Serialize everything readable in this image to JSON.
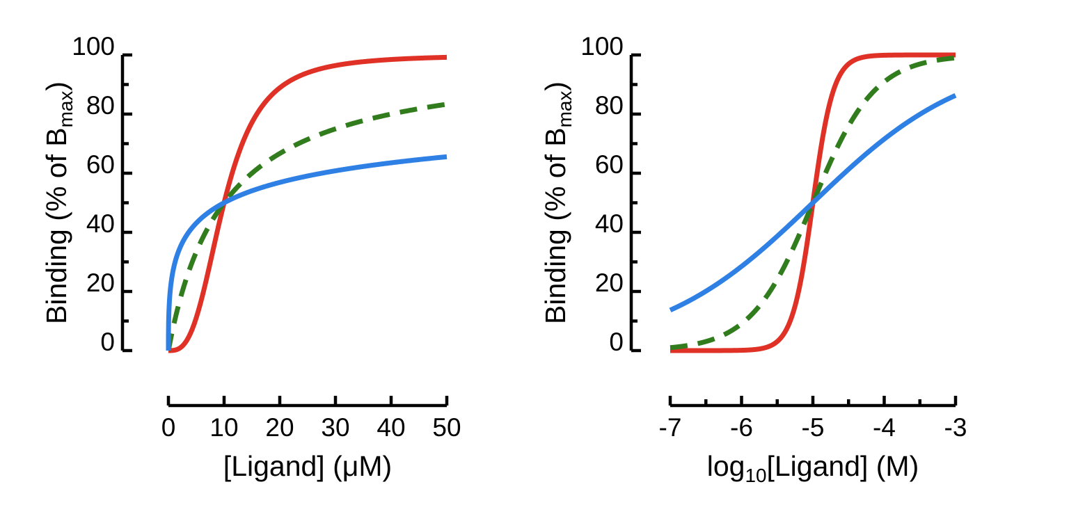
{
  "figure": {
    "background_color": "#FFFFFF",
    "axis_color": "#000000",
    "text_color": "#000000"
  },
  "chart_data": [
    {
      "id": "linear",
      "type": "line",
      "title": "",
      "x_scale": "linear",
      "xlabel_parts": [
        {
          "t": "[Ligand] (μM)"
        }
      ],
      "ylabel_parts": [
        {
          "t": "Binding (% of B"
        },
        {
          "t": "max",
          "sub": true
        },
        {
          "t": ")"
        }
      ],
      "xlim": [
        0,
        50
      ],
      "ylim": [
        0,
        100
      ],
      "x_major_ticks": [
        0,
        10,
        20,
        30,
        40,
        50
      ],
      "x_minor_ticks": [],
      "y_major_ticks": [
        0,
        20,
        40,
        60,
        80,
        100
      ],
      "y_minor_ticks": [
        10,
        30,
        50,
        70,
        90
      ],
      "grid": false,
      "legend": "none",
      "series": [
        {
          "name": "steep-sigmoidal-red",
          "color": "#E03127",
          "line_style": "solid",
          "hill_model": {
            "Bmax_pct": 100,
            "K_uM": 10,
            "hill_n": 3
          },
          "x_uM": [
            0,
            1,
            2,
            3,
            4,
            5,
            6,
            8,
            10,
            12,
            15,
            20,
            25,
            30,
            35,
            40,
            45,
            50
          ],
          "y_pct": [
            0,
            0.1,
            0.8,
            2.6,
            6.0,
            11.1,
            17.8,
            33.9,
            50,
            63.3,
            77.1,
            88.9,
            94.0,
            96.4,
            97.7,
            98.5,
            98.9,
            99.2
          ]
        },
        {
          "name": "hyperbolic-green-dashed",
          "color": "#317D1E",
          "line_style": "dashed",
          "hill_model": {
            "Bmax_pct": 100,
            "K_uM": 10,
            "hill_n": 1
          },
          "x_uM": [
            0,
            1,
            2,
            3,
            4,
            5,
            6,
            8,
            10,
            12,
            15,
            20,
            25,
            30,
            35,
            40,
            45,
            50
          ],
          "y_pct": [
            0,
            9.1,
            16.7,
            23.1,
            28.6,
            33.3,
            37.5,
            44.4,
            50,
            54.5,
            60.0,
            66.7,
            71.4,
            75.0,
            77.8,
            80.0,
            81.8,
            83.3
          ]
        },
        {
          "name": "shallow-blue",
          "color": "#2F80E4",
          "line_style": "solid",
          "hill_model": {
            "Bmax_pct": 100,
            "K_uM": 10,
            "hill_n": 0.4
          },
          "x_uM": [
            0,
            0.1,
            0.5,
            1,
            2,
            3,
            4,
            5,
            6,
            8,
            10,
            12,
            15,
            20,
            25,
            30,
            35,
            40,
            45,
            50
          ],
          "y_pct": [
            0,
            13.7,
            23.2,
            28.5,
            34.4,
            38.2,
            40.9,
            43.1,
            44.9,
            47.8,
            50,
            51.8,
            54.0,
            56.9,
            59.1,
            60.8,
            62.3,
            63.5,
            64.6,
            65.6
          ]
        }
      ]
    },
    {
      "id": "log",
      "type": "line",
      "title": "",
      "x_scale": "log10_molar",
      "xlabel_parts": [
        {
          "t": "log"
        },
        {
          "t": "10",
          "sub": true
        },
        {
          "t": "[Ligand] (M)"
        }
      ],
      "ylabel_parts": [
        {
          "t": "Binding (% of B"
        },
        {
          "t": "max",
          "sub": true
        },
        {
          "t": ")"
        }
      ],
      "xlim": [
        -7,
        -3
      ],
      "ylim": [
        0,
        100
      ],
      "x_major_ticks": [
        -7,
        -6,
        -5,
        -4,
        -3
      ],
      "x_minor_ticks": [
        -6.5,
        -5.5,
        -4.5,
        -3.5
      ],
      "y_major_ticks": [
        0,
        20,
        40,
        60,
        80,
        100
      ],
      "y_minor_ticks": [
        10,
        30,
        50,
        70,
        90
      ],
      "grid": false,
      "legend": "none",
      "series": [
        {
          "name": "steep-sigmoidal-red",
          "color": "#E03127",
          "line_style": "solid",
          "hill_model": {
            "Bmax_pct": 100,
            "K_uM": 10,
            "hill_n": 3
          },
          "x_log10_M": [
            -7,
            -6.5,
            -6,
            -5.5,
            -5.25,
            -5,
            -4.75,
            -4.5,
            -4,
            -3.5,
            -3
          ],
          "y_pct": [
            0,
            0,
            0.1,
            3.1,
            15.1,
            50,
            84.9,
            96.9,
            99.9,
            100,
            100
          ]
        },
        {
          "name": "hyperbolic-green-dashed",
          "color": "#317D1E",
          "line_style": "dashed",
          "hill_model": {
            "Bmax_pct": 100,
            "K_uM": 10,
            "hill_n": 1
          },
          "x_log10_M": [
            -7,
            -6.5,
            -6,
            -5.5,
            -5,
            -4.5,
            -4,
            -3.5,
            -3
          ],
          "y_pct": [
            1.0,
            3.1,
            9.1,
            24.0,
            50,
            76.0,
            90.9,
            96.9,
            99.0
          ]
        },
        {
          "name": "shallow-blue",
          "color": "#2F80E4",
          "line_style": "solid",
          "hill_model": {
            "Bmax_pct": 100,
            "K_uM": 10,
            "hill_n": 0.4
          },
          "x_log10_M": [
            -7,
            -6.5,
            -6,
            -5.5,
            -5,
            -4.5,
            -4,
            -3.5,
            -3
          ],
          "y_pct": [
            13.7,
            20.1,
            28.5,
            38.7,
            50,
            61.3,
            71.5,
            79.9,
            86.3
          ]
        }
      ]
    }
  ]
}
